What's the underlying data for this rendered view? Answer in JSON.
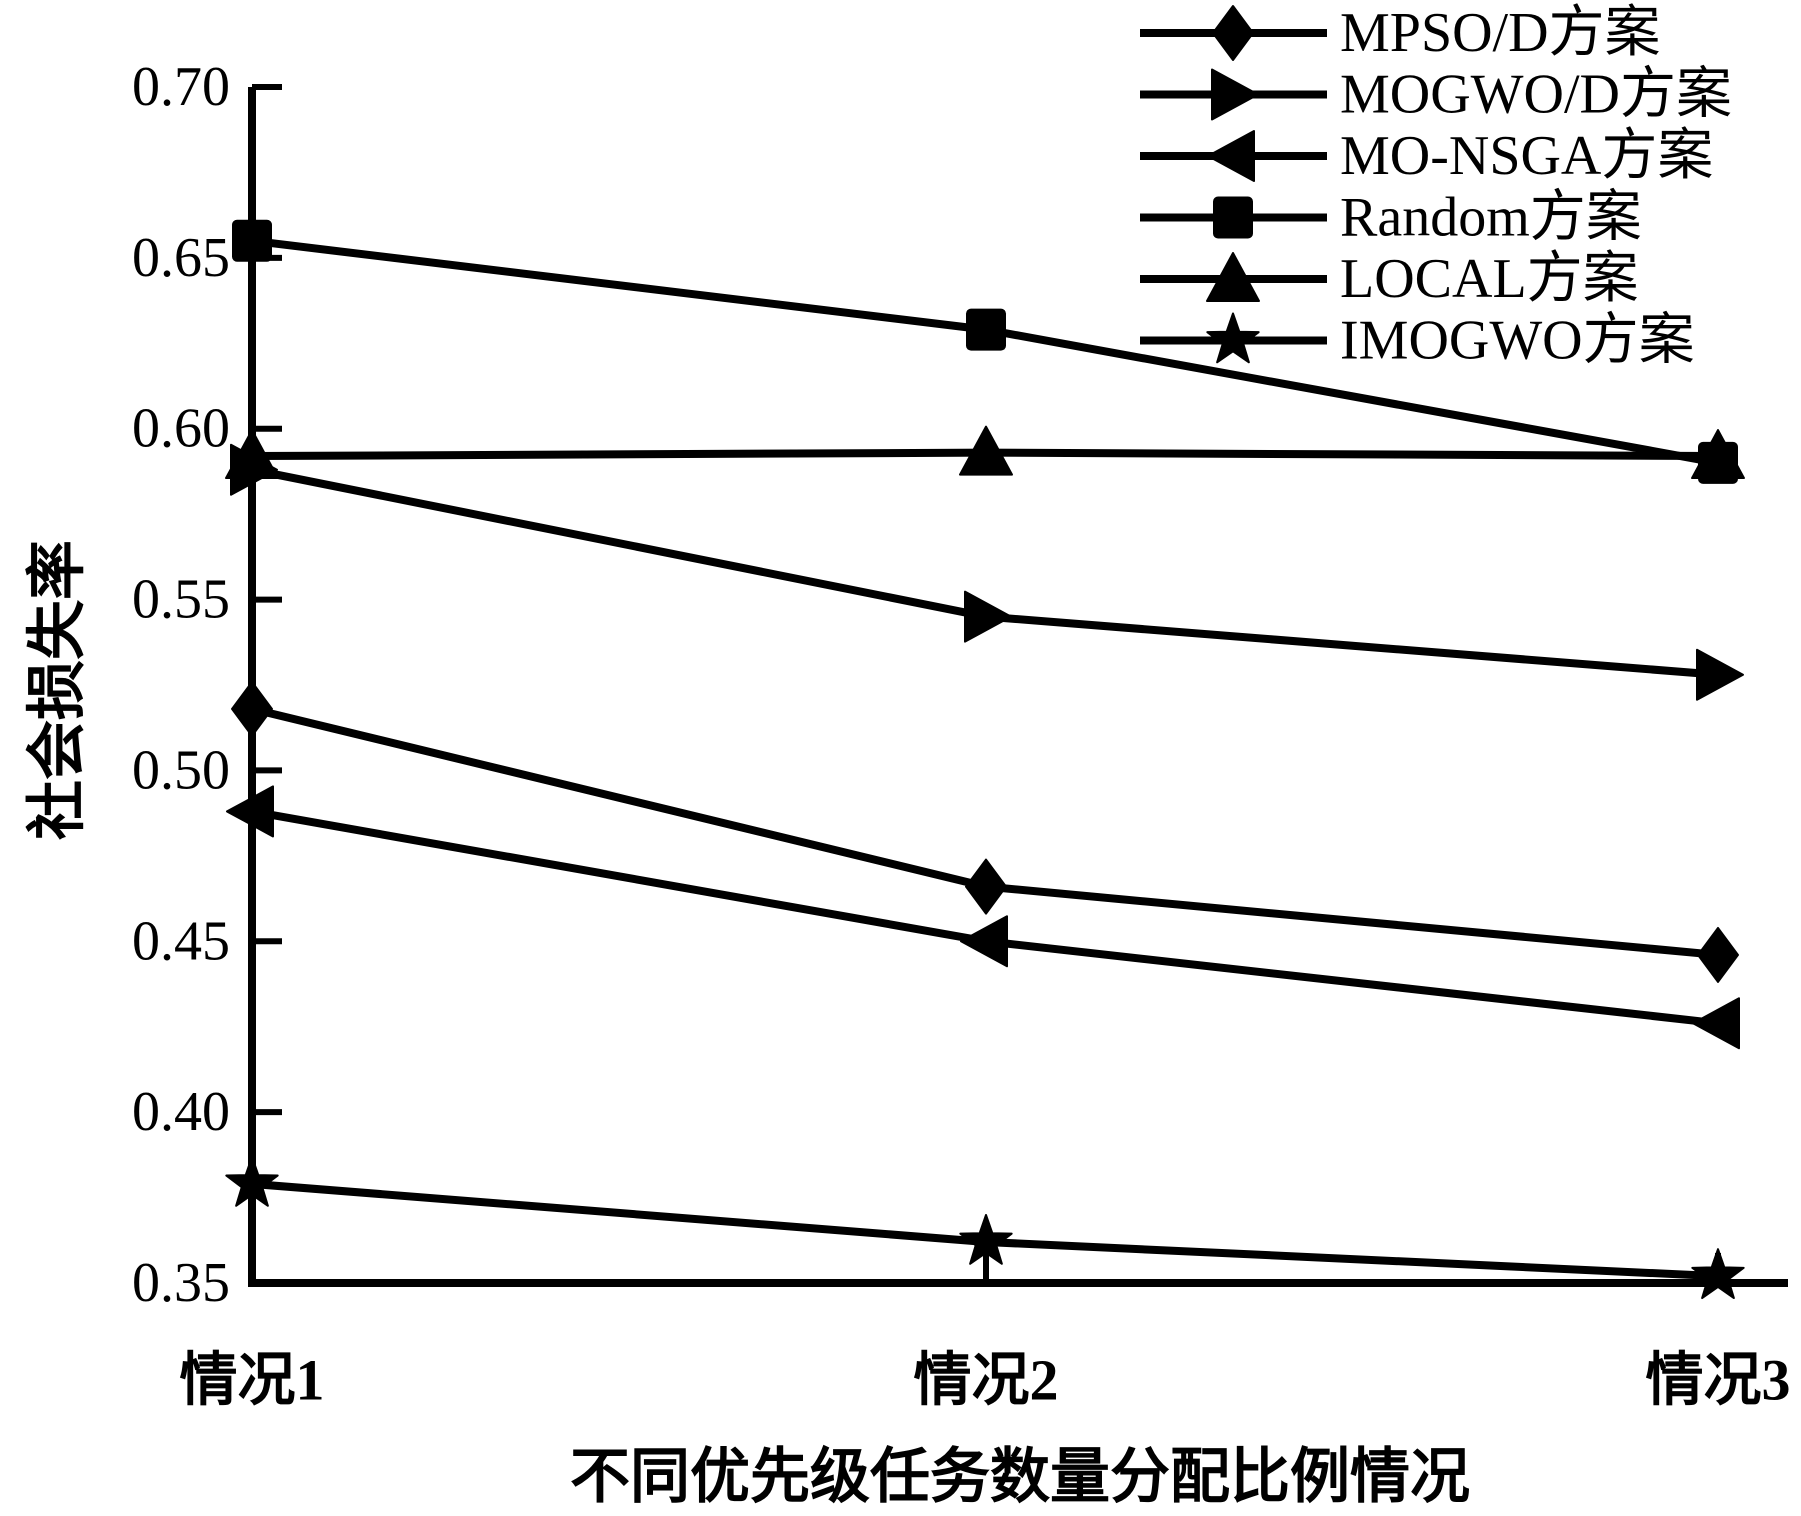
{
  "figure": {
    "background": "#ffffff",
    "line_color": "#000000",
    "x_axis_title": "不同优先级任务数量分配比例情况",
    "y_axis_title": "社会损失率"
  },
  "chart_data": {
    "type": "line",
    "title": "",
    "xlabel": "不同优先级任务数量分配比例情况",
    "ylabel": "社会损失率",
    "categories": [
      "情况1",
      "情况2",
      "情况3"
    ],
    "ylim": [
      0.35,
      0.7
    ],
    "ytick_step": 0.05,
    "ytick_labels": [
      "0.35",
      "0.40",
      "0.45",
      "0.50",
      "0.55",
      "0.60",
      "0.65",
      "0.70"
    ],
    "grid": false,
    "legend_position": "top-right",
    "series": [
      {
        "name": "MPSO/D方案",
        "marker": "diamond",
        "color": "#000000",
        "values": [
          0.518,
          0.466,
          0.446
        ]
      },
      {
        "name": "MOGWO/D方案",
        "marker": "triangle-right",
        "color": "#000000",
        "values": [
          0.588,
          0.545,
          0.528
        ]
      },
      {
        "name": "MO-NSGA方案",
        "marker": "triangle-left",
        "color": "#000000",
        "values": [
          0.488,
          0.45,
          0.426
        ]
      },
      {
        "name": "Random方案",
        "marker": "square",
        "color": "#000000",
        "values": [
          0.655,
          0.629,
          0.59
        ]
      },
      {
        "name": "LOCAL方案",
        "marker": "triangle-up",
        "color": "#000000",
        "values": [
          0.592,
          0.593,
          0.592
        ]
      },
      {
        "name": "IMOGWO方案",
        "marker": "star",
        "color": "#000000",
        "values": [
          0.379,
          0.362,
          0.352
        ]
      }
    ]
  }
}
